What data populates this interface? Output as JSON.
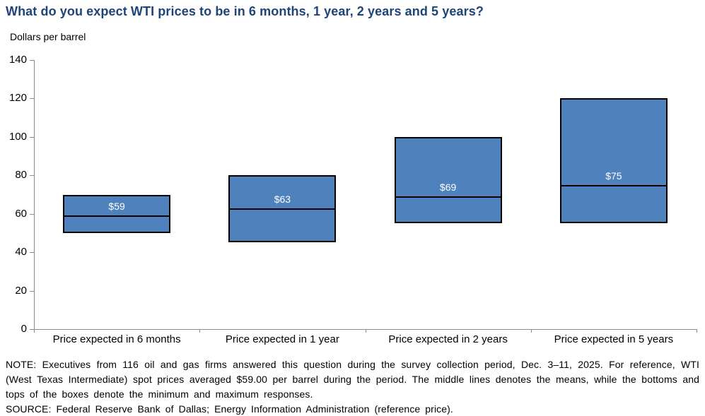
{
  "title": "What do you expect WTI prices to be in 6 months, 1 year, 2 years and 5 years?",
  "ylabel": "Dollars per barrel",
  "note": "NOTE: Executives from 116 oil and gas firms answered this question during the survey collection period, Dec. 3–11, 2025. For reference, WTI (West Texas Intermediate) spot prices averaged $59.00 per barrel during the period. The middle lines denotes the means, while the bottoms and tops of the boxes denote the minimum and maximum responses.",
  "source": "SOURCE: Federal Reserve Bank of Dallas; Energy Information Administration (reference price).",
  "colors": {
    "title": "#1F4477",
    "bar_fill": "#4F81BD",
    "bar_border": "#000000",
    "mean_line": "#000000",
    "bar_label": "#FFFFFF",
    "axis": "#8C8C8C",
    "text": "#000000"
  },
  "chart_data": {
    "type": "bar",
    "subtype": "floating-range-boxes-with-mean-line",
    "title": "What do you expect WTI prices to be in 6 months, 1 year, 2 years and 5 years?",
    "xlabel": "",
    "ylabel": "Dollars per barrel",
    "categories": [
      "Price expected in 6 months",
      "Price expected in 1 year",
      "Price expected in 2 years",
      "Price expected in 5 years"
    ],
    "bars": [
      {
        "category": "Price expected in 6 months",
        "min": 50,
        "max": 70,
        "mean": 59,
        "label": "$59"
      },
      {
        "category": "Price expected in 1 year",
        "min": 45,
        "max": 80,
        "mean": 63,
        "label": "$63"
      },
      {
        "category": "Price expected in 2 years",
        "min": 55,
        "max": 100,
        "mean": 69,
        "label": "$69"
      },
      {
        "category": "Price expected in 5 years",
        "min": 55,
        "max": 120,
        "mean": 75,
        "label": "$75"
      }
    ],
    "ylim": [
      0,
      140
    ],
    "ytick_step": 20,
    "grid": false,
    "legend": false
  }
}
